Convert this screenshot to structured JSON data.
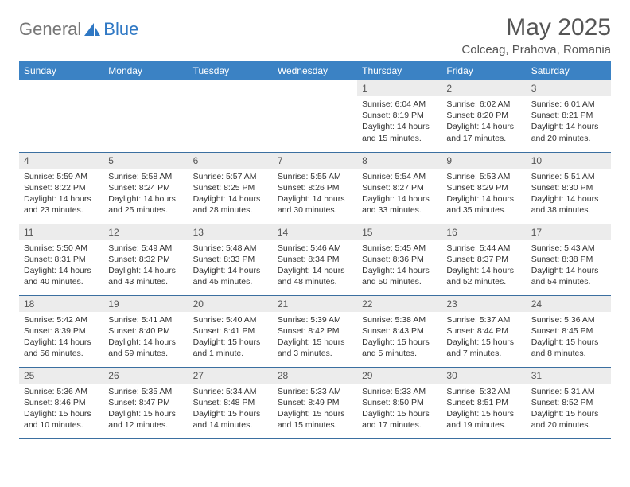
{
  "logo": {
    "general": "General",
    "blue": "Blue"
  },
  "title": "May 2025",
  "location": "Colceag, Prahova, Romania",
  "colors": {
    "header_bg": "#3b82c4",
    "header_text": "#ffffff",
    "daynum_bg": "#ececec",
    "border": "#3b6fa0",
    "logo_gray": "#777777",
    "logo_blue": "#2f78c4"
  },
  "weekdays": [
    "Sunday",
    "Monday",
    "Tuesday",
    "Wednesday",
    "Thursday",
    "Friday",
    "Saturday"
  ],
  "weeks": [
    [
      null,
      null,
      null,
      null,
      {
        "n": "1",
        "sr": "6:04 AM",
        "ss": "8:19 PM",
        "dl": "14 hours and 15 minutes."
      },
      {
        "n": "2",
        "sr": "6:02 AM",
        "ss": "8:20 PM",
        "dl": "14 hours and 17 minutes."
      },
      {
        "n": "3",
        "sr": "6:01 AM",
        "ss": "8:21 PM",
        "dl": "14 hours and 20 minutes."
      }
    ],
    [
      {
        "n": "4",
        "sr": "5:59 AM",
        "ss": "8:22 PM",
        "dl": "14 hours and 23 minutes."
      },
      {
        "n": "5",
        "sr": "5:58 AM",
        "ss": "8:24 PM",
        "dl": "14 hours and 25 minutes."
      },
      {
        "n": "6",
        "sr": "5:57 AM",
        "ss": "8:25 PM",
        "dl": "14 hours and 28 minutes."
      },
      {
        "n": "7",
        "sr": "5:55 AM",
        "ss": "8:26 PM",
        "dl": "14 hours and 30 minutes."
      },
      {
        "n": "8",
        "sr": "5:54 AM",
        "ss": "8:27 PM",
        "dl": "14 hours and 33 minutes."
      },
      {
        "n": "9",
        "sr": "5:53 AM",
        "ss": "8:29 PM",
        "dl": "14 hours and 35 minutes."
      },
      {
        "n": "10",
        "sr": "5:51 AM",
        "ss": "8:30 PM",
        "dl": "14 hours and 38 minutes."
      }
    ],
    [
      {
        "n": "11",
        "sr": "5:50 AM",
        "ss": "8:31 PM",
        "dl": "14 hours and 40 minutes."
      },
      {
        "n": "12",
        "sr": "5:49 AM",
        "ss": "8:32 PM",
        "dl": "14 hours and 43 minutes."
      },
      {
        "n": "13",
        "sr": "5:48 AM",
        "ss": "8:33 PM",
        "dl": "14 hours and 45 minutes."
      },
      {
        "n": "14",
        "sr": "5:46 AM",
        "ss": "8:34 PM",
        "dl": "14 hours and 48 minutes."
      },
      {
        "n": "15",
        "sr": "5:45 AM",
        "ss": "8:36 PM",
        "dl": "14 hours and 50 minutes."
      },
      {
        "n": "16",
        "sr": "5:44 AM",
        "ss": "8:37 PM",
        "dl": "14 hours and 52 minutes."
      },
      {
        "n": "17",
        "sr": "5:43 AM",
        "ss": "8:38 PM",
        "dl": "14 hours and 54 minutes."
      }
    ],
    [
      {
        "n": "18",
        "sr": "5:42 AM",
        "ss": "8:39 PM",
        "dl": "14 hours and 56 minutes."
      },
      {
        "n": "19",
        "sr": "5:41 AM",
        "ss": "8:40 PM",
        "dl": "14 hours and 59 minutes."
      },
      {
        "n": "20",
        "sr": "5:40 AM",
        "ss": "8:41 PM",
        "dl": "15 hours and 1 minute."
      },
      {
        "n": "21",
        "sr": "5:39 AM",
        "ss": "8:42 PM",
        "dl": "15 hours and 3 minutes."
      },
      {
        "n": "22",
        "sr": "5:38 AM",
        "ss": "8:43 PM",
        "dl": "15 hours and 5 minutes."
      },
      {
        "n": "23",
        "sr": "5:37 AM",
        "ss": "8:44 PM",
        "dl": "15 hours and 7 minutes."
      },
      {
        "n": "24",
        "sr": "5:36 AM",
        "ss": "8:45 PM",
        "dl": "15 hours and 8 minutes."
      }
    ],
    [
      {
        "n": "25",
        "sr": "5:36 AM",
        "ss": "8:46 PM",
        "dl": "15 hours and 10 minutes."
      },
      {
        "n": "26",
        "sr": "5:35 AM",
        "ss": "8:47 PM",
        "dl": "15 hours and 12 minutes."
      },
      {
        "n": "27",
        "sr": "5:34 AM",
        "ss": "8:48 PM",
        "dl": "15 hours and 14 minutes."
      },
      {
        "n": "28",
        "sr": "5:33 AM",
        "ss": "8:49 PM",
        "dl": "15 hours and 15 minutes."
      },
      {
        "n": "29",
        "sr": "5:33 AM",
        "ss": "8:50 PM",
        "dl": "15 hours and 17 minutes."
      },
      {
        "n": "30",
        "sr": "5:32 AM",
        "ss": "8:51 PM",
        "dl": "15 hours and 19 minutes."
      },
      {
        "n": "31",
        "sr": "5:31 AM",
        "ss": "8:52 PM",
        "dl": "15 hours and 20 minutes."
      }
    ]
  ],
  "labels": {
    "sunrise": "Sunrise: ",
    "sunset": "Sunset: ",
    "daylight": "Daylight: "
  }
}
